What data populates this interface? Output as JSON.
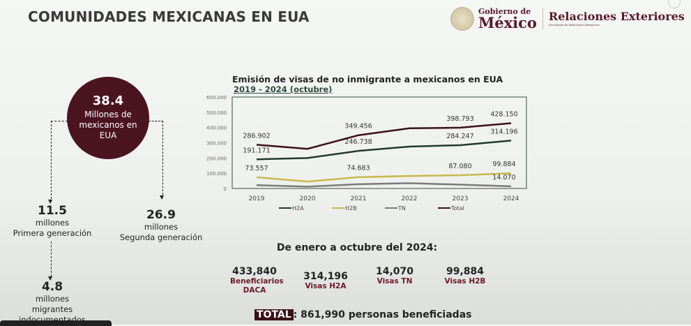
{
  "title": "COMUNIDADES MEXICANAS EN EUA",
  "logo": {
    "gob_small": "Gobierno de",
    "gob_big": "México",
    "rel": "Relaciones Exteriores",
    "rel_sub": "Secretaría de Relaciones Exteriores"
  },
  "circle": {
    "value": "38.4",
    "label": "Millones de mexicanos en EUA"
  },
  "first": {
    "value": "11.5",
    "unit": "millones",
    "label": "Primera generación"
  },
  "second": {
    "value": "26.9",
    "unit": "millones",
    "label": "Segunda generación"
  },
  "undoc": {
    "value": "4.8",
    "l1": "millones",
    "l2": "migrantes",
    "l3": "indocumentados"
  },
  "chart_data": {
    "type": "line",
    "title": "Emisión de visas de no inmigrante a mexicanos en EUA",
    "subtitle": "2019 - 2024 (octubre)",
    "categories": [
      "2019",
      "2020",
      "2021",
      "2022",
      "2023",
      "2024"
    ],
    "ylim": [
      0,
      600000
    ],
    "yticks": [
      "0",
      "100.000",
      "200.000",
      "300.000",
      "400.000",
      "500.000",
      "600.000"
    ],
    "series": [
      {
        "name": "H2A",
        "color": "#1f3a2c",
        "values": [
          191171,
          200000,
          246738,
          275000,
          284247,
          314196
        ],
        "labels": [
          "191.171",
          "",
          "246.738",
          "",
          "284.247",
          "314.196"
        ]
      },
      {
        "name": "H2B",
        "color": "#c9b84a",
        "values": [
          73557,
          45000,
          74683,
          82000,
          87080,
          99884
        ],
        "labels": [
          "73.557",
          "",
          "74.683",
          "",
          "87.080",
          "99.884"
        ]
      },
      {
        "name": "TN",
        "color": "#7a7a7a",
        "values": [
          22000,
          12000,
          28000,
          35000,
          25000,
          14070
        ],
        "labels": [
          "",
          "",
          "",
          "",
          "",
          "14.070"
        ]
      },
      {
        "name": "Total",
        "color": "#3a0f1c",
        "values": [
          286902,
          260000,
          349456,
          395000,
          398793,
          428150
        ],
        "labels": [
          "286.902",
          "",
          "349.456",
          "",
          "398.793",
          "428.150"
        ]
      }
    ]
  },
  "summary": {
    "heading": "De enero a octubre del 2024:",
    "items": [
      {
        "n": "433,840",
        "t": "Beneficiarios DACA"
      },
      {
        "n": "314,196",
        "t": "Visas H2A"
      },
      {
        "n": "14,070",
        "t": "Visas TN"
      },
      {
        "n": "99,884",
        "t": "Visas H2B"
      }
    ],
    "total_label": "TOTAL",
    "total_text": ": 861,990 personas beneficiadas"
  }
}
